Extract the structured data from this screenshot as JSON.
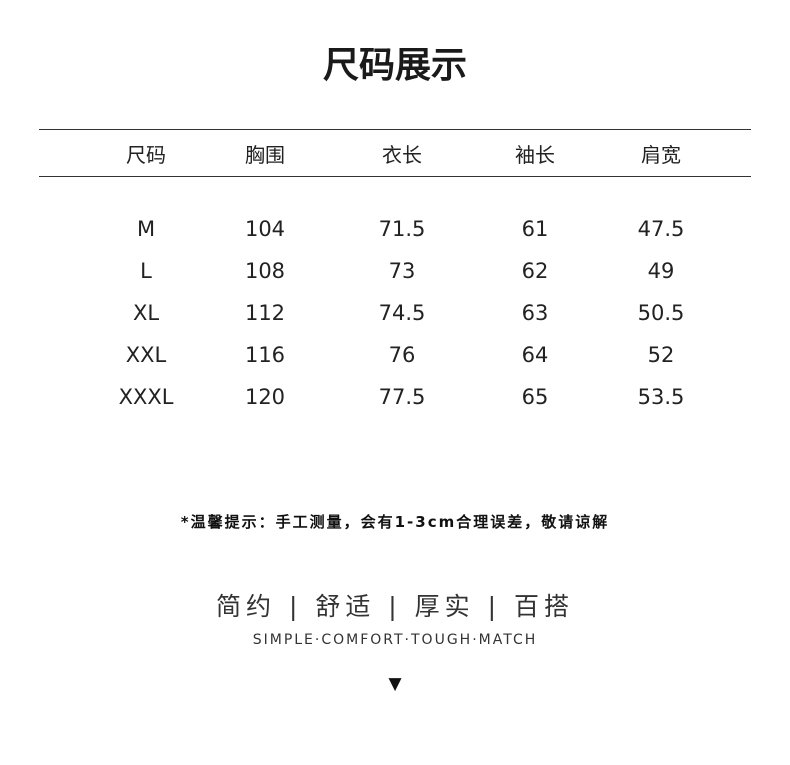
{
  "title": "尺码展示",
  "table": {
    "headers": [
      "尺码",
      "胸围",
      "衣长",
      "袖长",
      "肩宽"
    ],
    "rows": [
      [
        "M",
        "104",
        "71.5",
        "61",
        "47.5"
      ],
      [
        "L",
        "108",
        "73",
        "62",
        "49"
      ],
      [
        "XL",
        "112",
        "74.5",
        "63",
        "50.5"
      ],
      [
        "XXL",
        "116",
        "76",
        "64",
        "52"
      ],
      [
        "XXXL",
        "120",
        "77.5",
        "65",
        "53.5"
      ]
    ]
  },
  "note": "*温馨提示：手工测量，会有1-3cm合理误差，敬请谅解",
  "tagline": "简约 | 舒适 | 厚实 | 百搭",
  "tagline_en": "SIMPLE·COMFORT·TOUGH·MATCH",
  "arrow_icon": "▼"
}
